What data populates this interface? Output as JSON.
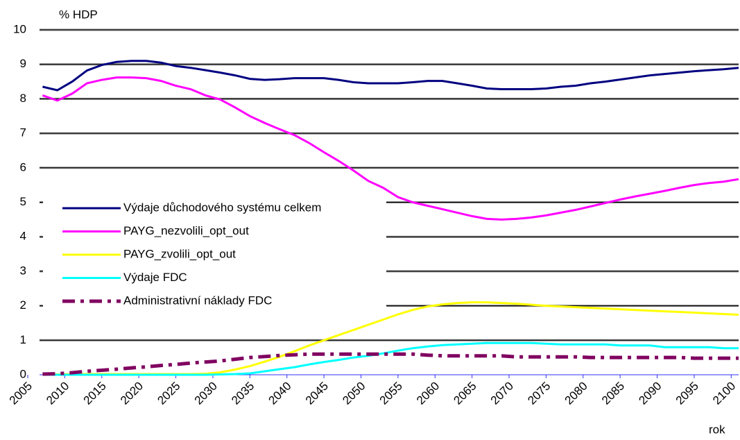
{
  "chart_data": {
    "type": "line",
    "y_label": "% HDP",
    "x_label": "rok",
    "x": [
      2007,
      2009,
      2011,
      2013,
      2015,
      2017,
      2019,
      2021,
      2023,
      2025,
      2027,
      2029,
      2031,
      2033,
      2035,
      2037,
      2039,
      2041,
      2043,
      2045,
      2047,
      2049,
      2051,
      2053,
      2055,
      2057,
      2059,
      2061,
      2063,
      2065,
      2067,
      2069,
      2071,
      2073,
      2075,
      2077,
      2079,
      2081,
      2083,
      2085,
      2087,
      2089,
      2091,
      2093,
      2095,
      2097,
      2099,
      2101
    ],
    "series": [
      {
        "name": "Výdaje důchodového systému celkem",
        "color": "#000080",
        "dash": "solid",
        "values": [
          8.35,
          8.25,
          8.5,
          8.82,
          8.98,
          9.07,
          9.1,
          9.1,
          9.05,
          8.95,
          8.9,
          8.83,
          8.76,
          8.68,
          8.58,
          8.55,
          8.57,
          8.6,
          8.6,
          8.6,
          8.55,
          8.48,
          8.45,
          8.45,
          8.45,
          8.48,
          8.52,
          8.52,
          8.45,
          8.38,
          8.3,
          8.28,
          8.28,
          8.28,
          8.3,
          8.35,
          8.38,
          8.45,
          8.5,
          8.56,
          8.62,
          8.68,
          8.72,
          8.76,
          8.8,
          8.83,
          8.86,
          8.9
        ]
      },
      {
        "name": "PAYG_nezvolili_opt_out",
        "color": "#ff00ff",
        "dash": "solid",
        "values": [
          8.1,
          7.95,
          8.15,
          8.45,
          8.55,
          8.62,
          8.62,
          8.6,
          8.52,
          8.38,
          8.28,
          8.1,
          7.98,
          7.75,
          7.5,
          7.3,
          7.12,
          6.95,
          6.72,
          6.45,
          6.2,
          5.92,
          5.62,
          5.42,
          5.15,
          5.0,
          4.9,
          4.8,
          4.7,
          4.6,
          4.52,
          4.5,
          4.52,
          4.56,
          4.62,
          4.7,
          4.78,
          4.88,
          4.98,
          5.08,
          5.17,
          5.25,
          5.33,
          5.42,
          5.5,
          5.56,
          5.6,
          5.67
        ]
      },
      {
        "name": "PAYG_zvolili_opt_out",
        "color": "#ffff00",
        "dash": "solid",
        "values": [
          0,
          0.01,
          0.02,
          0.02,
          0.02,
          0.02,
          0.02,
          0.02,
          0.02,
          0.02,
          0.02,
          0.03,
          0.07,
          0.15,
          0.25,
          0.38,
          0.52,
          0.68,
          0.85,
          1.0,
          1.15,
          1.3,
          1.45,
          1.6,
          1.75,
          1.88,
          1.98,
          2.04,
          2.08,
          2.1,
          2.1,
          2.08,
          2.06,
          2.03,
          2.0,
          1.98,
          1.96,
          1.94,
          1.92,
          1.9,
          1.88,
          1.86,
          1.84,
          1.82,
          1.8,
          1.78,
          1.76,
          1.74
        ]
      },
      {
        "name": "Výdaje FDC",
        "color": "#00ffff",
        "dash": "solid",
        "values": [
          0,
          0,
          0,
          0,
          0,
          0,
          0,
          0,
          0,
          0,
          0,
          0,
          0.01,
          0.02,
          0.04,
          0.1,
          0.16,
          0.22,
          0.3,
          0.37,
          0.43,
          0.5,
          0.55,
          0.62,
          0.7,
          0.77,
          0.82,
          0.86,
          0.88,
          0.9,
          0.92,
          0.92,
          0.92,
          0.92,
          0.9,
          0.88,
          0.88,
          0.88,
          0.88,
          0.85,
          0.85,
          0.85,
          0.8,
          0.8,
          0.8,
          0.8,
          0.77,
          0.77
        ]
      },
      {
        "name": "Administrativní náklady FDC",
        "color": "#800060",
        "dash": "dashdot",
        "values": [
          0.02,
          0.03,
          0.06,
          0.1,
          0.13,
          0.16,
          0.2,
          0.23,
          0.27,
          0.3,
          0.34,
          0.37,
          0.4,
          0.45,
          0.5,
          0.53,
          0.56,
          0.58,
          0.6,
          0.6,
          0.6,
          0.6,
          0.6,
          0.6,
          0.6,
          0.6,
          0.57,
          0.55,
          0.55,
          0.55,
          0.55,
          0.55,
          0.52,
          0.52,
          0.52,
          0.52,
          0.52,
          0.5,
          0.5,
          0.5,
          0.5,
          0.5,
          0.5,
          0.5,
          0.48,
          0.48,
          0.48,
          0.48
        ]
      }
    ],
    "xlim": [
      2005,
      2101
    ],
    "ylim": [
      0,
      10
    ],
    "xticks": [
      2005,
      2010,
      2015,
      2020,
      2025,
      2030,
      2035,
      2040,
      2045,
      2050,
      2055,
      2060,
      2065,
      2070,
      2075,
      2080,
      2085,
      2090,
      2095,
      2100
    ],
    "yticks": [
      0,
      1,
      2,
      3,
      4,
      5,
      6,
      7,
      8,
      9,
      10
    ],
    "grid": true,
    "legend": "left"
  }
}
